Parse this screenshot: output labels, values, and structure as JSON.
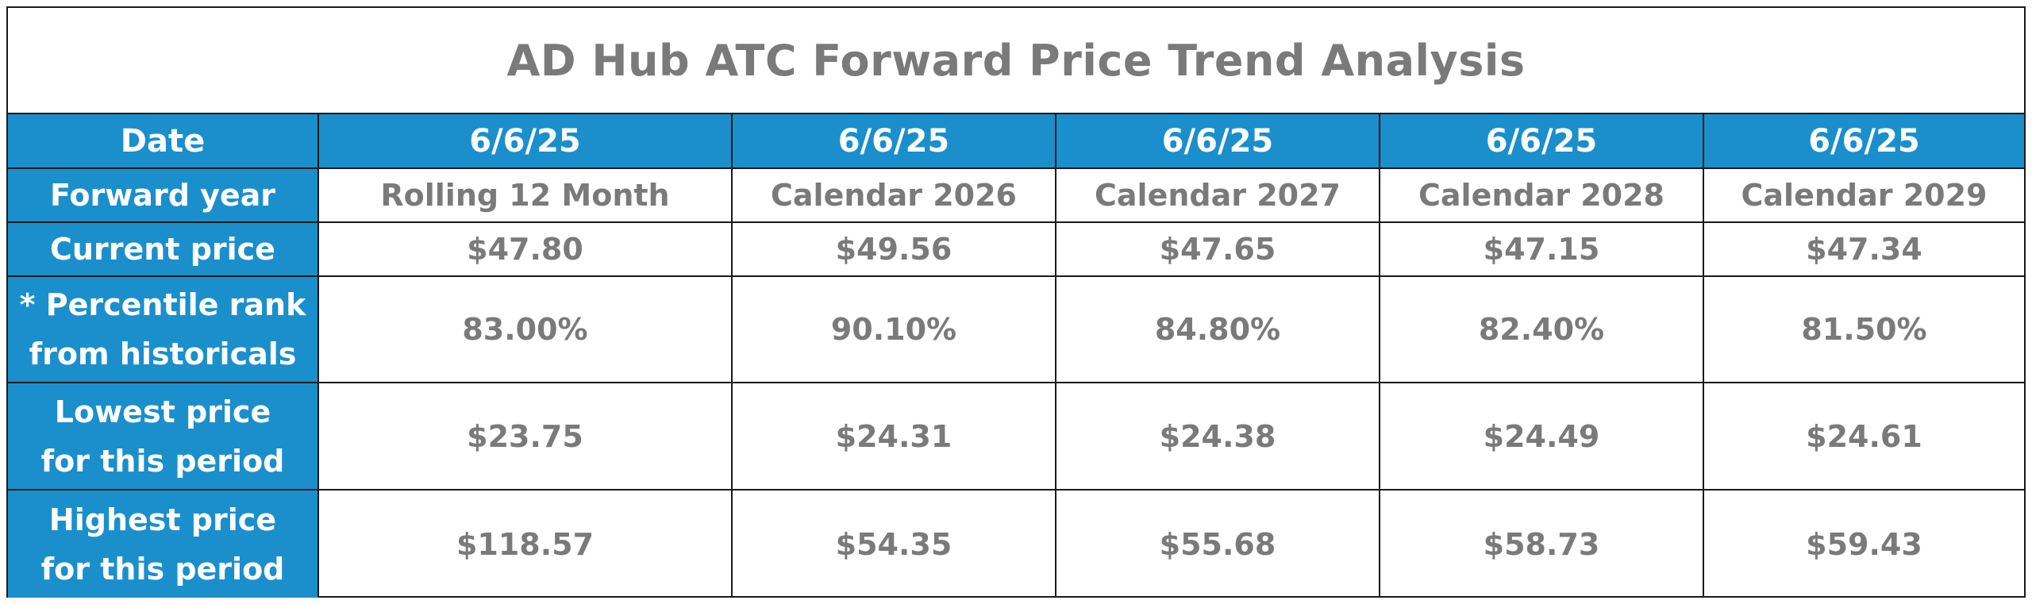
{
  "title": "AD Hub ATC Forward Price Trend Analysis",
  "labels": {
    "date": "Date",
    "forward_year": "Forward year",
    "current_price": "Current price",
    "percentile_line1": "* Percentile rank",
    "percentile_line2": "from historicals",
    "lowest_line1": "Lowest price",
    "lowest_line2": "for this period",
    "highest_line1": "Highest price",
    "highest_line2": "for this period"
  },
  "columns": [
    {
      "date": "6/6/25",
      "forward_year": "Rolling 12 Month",
      "current_price": "$47.80",
      "percentile": "83.00%",
      "lowest": "$23.75",
      "highest": "$118.57"
    },
    {
      "date": "6/6/25",
      "forward_year": "Calendar 2026",
      "current_price": "$49.56",
      "percentile": "90.10%",
      "lowest": "$24.31",
      "highest": "$54.35"
    },
    {
      "date": "6/6/25",
      "forward_year": "Calendar 2027",
      "current_price": "$47.65",
      "percentile": "84.80%",
      "lowest": "$24.38",
      "highest": "$55.68"
    },
    {
      "date": "6/6/25",
      "forward_year": "Calendar 2028",
      "current_price": "$47.15",
      "percentile": "82.40%",
      "lowest": "$24.49",
      "highest": "$58.73"
    },
    {
      "date": "6/6/25",
      "forward_year": "Calendar 2029",
      "current_price": "$47.34",
      "percentile": "81.50%",
      "lowest": "$24.61",
      "highest": "$59.43"
    }
  ],
  "colors": {
    "header_blue": "#1a8fcc",
    "value_gray": "#7a7a7a",
    "border": "#1a1a1a"
  }
}
